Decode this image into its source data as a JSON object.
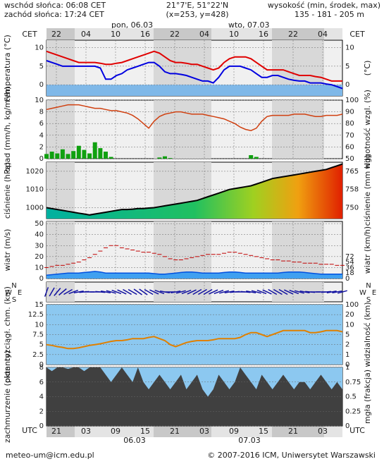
{
  "header": {
    "sunrise": "wschód słońca: 06:08 CET",
    "sunset": "zachód słońca: 17:24 CET",
    "coords": "21°7'E, 51°22'N",
    "grid": "(x=253,  y=428)",
    "heights_title": "wysokość (min, środek, max)",
    "heights": "135 - 181 - 205 m",
    "day1": "pon, 06.03",
    "day2": "wto, 07.03",
    "cet": "CET",
    "utc": "UTC",
    "date1": "06.03",
    "date2": "07.03"
  },
  "footer": {
    "email": "meteo-um@icm.edu.pl",
    "copyright": "© 2007-2016 ICM, Uniwersytet Warszawski"
  },
  "colors": {
    "panel_bg": "#f0f0f0",
    "panel_bg_dark": "#d8d8d8",
    "temp_red": "#e00000",
    "temp_blue": "#0000e0",
    "precip_green": "#10a010",
    "humidity": "#d04010",
    "wind_blue": "#0050e0",
    "wind_green": "#109010",
    "cloud_dark": "#404040",
    "sky_blue": "#8cc8f0"
  },
  "chart_data": {
    "type": "line",
    "time_axis": {
      "cet_ticks": [
        "22",
        "04",
        "10",
        "16",
        "22",
        "04",
        "10",
        "16",
        "22",
        "04"
      ],
      "utc_ticks": [
        "21",
        "03",
        "09",
        "15",
        "21",
        "03",
        "09",
        "15",
        "21",
        "03"
      ],
      "x_hours_utc": [
        0,
        6,
        12,
        18,
        24,
        30,
        36,
        42,
        48,
        54
      ]
    },
    "panels": [
      {
        "name": "temperature",
        "ylabel_left": "temperatura (°C)",
        "ylabel_right": "(°C)",
        "yticks": [
          0,
          5,
          10
        ],
        "ylim": [
          -3,
          12
        ],
        "series": [
          {
            "values": [
              9,
              8.5,
              8,
              7.5,
              7,
              6.5,
              6,
              6,
              6,
              6,
              5.8,
              5.5,
              5.5,
              5.8,
              6,
              6.5,
              7,
              7.5,
              8,
              8.5,
              9,
              8.5,
              7.5,
              6.5,
              6,
              6,
              5.8,
              5.5,
              5.5,
              5,
              4.5,
              4,
              4.5,
              6,
              7,
              7.5,
              7.5,
              7.5,
              7,
              6,
              5,
              4,
              4,
              4,
              4,
              3.5,
              3,
              2.5,
              2.5,
              2.5,
              2.2,
              2,
              1.5,
              1,
              1,
              1
            ]
          },
          {
            "values": [
              6.5,
              6,
              5.5,
              5,
              5,
              5,
              5,
              5,
              5,
              5,
              4.5,
              1.5,
              1.5,
              2.5,
              3,
              4,
              4.5,
              5,
              5.5,
              6,
              6,
              5,
              3.5,
              3,
              3,
              2.8,
              2.5,
              2,
              1.5,
              1,
              1,
              0.5,
              2,
              4,
              5,
              5,
              5,
              4.5,
              4,
              3,
              2,
              2,
              2.5,
              2.5,
              2,
              1.5,
              1.2,
              1,
              1,
              0.5,
              0.5,
              0.5,
              0.2,
              0,
              -0.5,
              -1
            ]
          }
        ]
      },
      {
        "name": "precipitation_humidity",
        "ylabel_left": "opad (mm/h, kg/m²/h)",
        "ylabel_right": "wilgotność wzgl. (%)",
        "yticks": [
          0,
          2,
          4,
          6,
          8,
          10
        ],
        "yticks_right": [
          50,
          60,
          70,
          80,
          90,
          100
        ],
        "ylim": [
          0,
          10
        ],
        "precip_values": [
          0.8,
          1.2,
          0.9,
          1.6,
          0.8,
          1.3,
          2.2,
          1.5,
          0.9,
          2.8,
          1.8,
          1.2,
          0.3,
          0,
          0,
          0,
          0,
          0,
          0,
          0,
          0,
          0.2,
          0.4,
          0.1,
          0,
          0,
          0,
          0,
          0,
          0,
          0,
          0,
          0,
          0,
          0,
          0,
          0,
          0,
          0.6,
          0.3,
          0,
          0,
          0,
          0,
          0,
          0,
          0,
          0,
          0,
          0,
          0,
          0,
          0,
          0,
          0,
          0
        ],
        "humidity_values": [
          92,
          93,
          94,
          95,
          96,
          96,
          96,
          95,
          94,
          93,
          93,
          92,
          91,
          91,
          90,
          89,
          87,
          84,
          80,
          76,
          82,
          86,
          88,
          89,
          90,
          90,
          89,
          88,
          88,
          88,
          87,
          86,
          85,
          84,
          82,
          80,
          77,
          75,
          74,
          76,
          82,
          86,
          87,
          87,
          87,
          87,
          88,
          88,
          88,
          87,
          86,
          86,
          87,
          87,
          87,
          88
        ]
      },
      {
        "name": "pressure",
        "ylabel_left": "ciśnienie (hPa)",
        "ylabel_right": "ciśnienie (mm Hg)",
        "yticks": [
          1000,
          1010,
          1020
        ],
        "yticks_right": [
          750,
          758,
          765
        ],
        "ylim": [
          994,
          1025
        ],
        "values": [
          1000,
          999.5,
          999,
          998.5,
          998,
          997.5,
          997,
          996.5,
          996,
          996.5,
          997,
          997.5,
          998,
          998.5,
          999,
          999,
          999.2,
          999.5,
          999.5,
          999.8,
          1000,
          1000.5,
          1001,
          1001.5,
          1002,
          1002.5,
          1003,
          1003.5,
          1004,
          1005,
          1006,
          1007,
          1008,
          1009,
          1010,
          1010.5,
          1011,
          1011.5,
          1012,
          1013,
          1014,
          1015,
          1016,
          1016.5,
          1017,
          1017.5,
          1018,
          1018.5,
          1019,
          1019.5,
          1020,
          1020.5,
          1021,
          1022,
          1023,
          1024
        ]
      },
      {
        "name": "wind",
        "ylabel_left": "wiatr (m/s)",
        "ylabel_right": "wiatr (km/h)",
        "yticks": [
          0,
          10,
          20,
          30,
          40,
          50
        ],
        "yticks_right": [
          0,
          18,
          36,
          54,
          72
        ],
        "ylim": [
          0,
          52
        ],
        "mean_values": [
          3,
          3.5,
          4,
          4.5,
          5,
          5,
          5,
          5.5,
          6,
          6.5,
          6,
          5,
          5,
          5,
          5,
          5,
          5,
          5,
          5,
          5,
          4.5,
          4,
          4,
          4.5,
          5,
          5.5,
          6,
          6,
          5.5,
          5,
          5,
          5,
          5,
          5.5,
          6,
          6,
          5.5,
          5,
          5,
          5,
          5,
          5,
          5,
          5,
          5.5,
          6,
          6,
          6,
          5.5,
          5,
          4.5,
          4,
          4,
          4,
          4,
          4
        ],
        "gust_values": [
          10,
          11,
          12,
          12,
          13,
          14,
          15,
          17,
          19,
          22,
          25,
          28,
          30,
          30,
          28,
          27,
          26,
          25,
          24,
          24,
          23,
          22,
          20,
          18,
          17,
          17,
          18,
          19,
          20,
          21,
          22,
          22,
          22,
          23,
          24,
          24,
          23,
          22,
          21,
          20,
          19,
          18,
          17,
          17,
          16,
          16,
          15,
          15,
          14,
          14,
          14,
          13,
          13,
          13,
          12,
          12
        ]
      },
      {
        "name": "wind_direction",
        "compass": [
          "N",
          "W",
          "E",
          "S"
        ],
        "dir_deg": [
          200,
          210,
          220,
          230,
          240,
          250,
          260,
          265,
          270,
          270,
          275,
          280,
          285,
          290,
          295,
          300,
          300,
          305,
          305,
          300,
          295,
          290,
          280,
          270,
          260,
          255,
          250,
          245,
          240,
          240,
          240,
          245,
          250,
          255,
          260,
          265,
          270,
          275,
          280,
          285,
          290,
          295,
          300,
          300,
          300,
          295,
          290,
          285,
          280,
          275,
          270,
          270,
          265,
          260,
          260,
          255
        ]
      },
      {
        "name": "visibility",
        "ylabel_left": "pion. rozciągł. chm. (km)",
        "ylabel_right": "widzialność (km)",
        "yticks": [
          0,
          2.5,
          5,
          7.5,
          10,
          12.5,
          15
        ],
        "yticks_right": [
          0,
          1,
          2,
          5,
          10,
          20,
          100
        ],
        "ylim": [
          0,
          15
        ],
        "visibility_values": [
          5,
          4.8,
          4.5,
          4.3,
          4,
          4,
          4.2,
          4.5,
          4.8,
          5,
          5.2,
          5.5,
          5.8,
          6,
          6,
          6.2,
          6.5,
          6.5,
          6.5,
          6.8,
          7,
          6.5,
          6,
          5,
          4.5,
          5,
          5.5,
          5.8,
          6,
          6,
          6,
          6.2,
          6.5,
          6.5,
          6.5,
          6.5,
          6.8,
          7.5,
          8,
          8,
          7.5,
          7,
          7.5,
          8,
          8.5,
          8.5,
          8.5,
          8.5,
          8.5,
          8,
          8,
          8.2,
          8.5,
          8.5,
          8.5,
          8.2
        ]
      },
      {
        "name": "clouds",
        "ylabel_left": "zachmurzenie (oktanty)",
        "ylabel_right": "mgła (frakcja)",
        "yticks": [
          0,
          2,
          4,
          6,
          8
        ],
        "yticks_right": [
          0,
          0.25,
          0.5,
          0.75,
          1
        ],
        "ylim": [
          0,
          8
        ],
        "cloud_values": [
          8,
          7.5,
          8,
          8,
          7.8,
          8,
          8,
          7.5,
          8,
          8,
          8,
          7,
          6,
          7,
          8,
          7,
          6,
          8,
          6,
          5,
          6,
          7,
          6,
          5,
          6,
          7,
          5,
          6,
          7,
          5,
          4,
          5,
          7,
          6,
          5,
          6,
          8,
          7,
          6,
          5,
          7,
          6,
          5,
          6,
          7,
          6,
          5,
          6,
          6,
          5,
          6,
          7,
          6,
          5,
          6,
          5
        ]
      }
    ]
  }
}
